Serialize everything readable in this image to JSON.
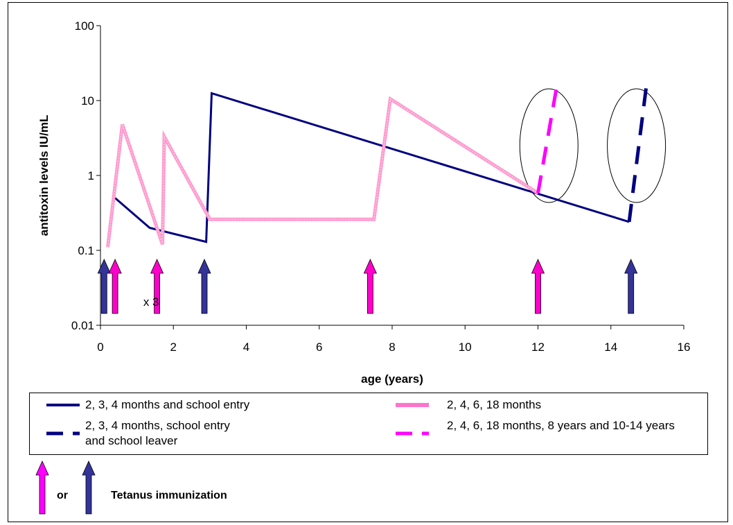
{
  "chart_data": {
    "type": "line",
    "title": "",
    "xlabel": "age (years)",
    "ylabel": "antitoxin levels IU/mL",
    "xlim": [
      0,
      16
    ],
    "ylim": [
      0.01,
      100
    ],
    "yscale": "log",
    "xticks": [
      0,
      2,
      4,
      6,
      8,
      10,
      12,
      14,
      16
    ],
    "yticks": [
      0.01,
      0.1,
      1,
      10,
      100
    ],
    "ytick_labels": [
      "0.01",
      "0.1",
      "1",
      "10",
      "100"
    ],
    "grid": false,
    "legend_position": "bottom",
    "series": [
      {
        "name": "2, 3, 4 months and school entry",
        "color": "#000080",
        "style": "solid",
        "points": [
          [
            0.4,
            0.5
          ],
          [
            1.35,
            0.2
          ],
          [
            2.9,
            0.13
          ],
          [
            3.05,
            12.5
          ],
          [
            14.5,
            0.24
          ]
        ]
      },
      {
        "name": "2, 4, 6, 18 months",
        "color": "#FF99CC",
        "style": "solid",
        "points": [
          [
            0.2,
            0.11
          ],
          [
            0.6,
            4.8
          ],
          [
            1.7,
            0.12
          ],
          [
            1.75,
            3.3
          ],
          [
            3.0,
            0.26
          ],
          [
            7.5,
            0.26
          ],
          [
            7.95,
            10.5
          ],
          [
            12.0,
            0.58
          ]
        ]
      },
      {
        "name": "2, 3, 4 months, school entry and school leaver",
        "color": "#000080",
        "style": "dashed",
        "points": [
          [
            14.5,
            0.24
          ],
          [
            15.0,
            20
          ]
        ]
      },
      {
        "name": "2, 4, 6, 18 months, 8 years and 10-14 years",
        "color": "#FF00FF",
        "style": "dashed",
        "points": [
          [
            12.0,
            0.58
          ],
          [
            12.5,
            14
          ]
        ]
      }
    ],
    "immunizations": [
      {
        "age": 0.1,
        "color": "#333399"
      },
      {
        "age": 0.4,
        "color": "#FF00CC"
      },
      {
        "age": 1.55,
        "color": "#FF00CC"
      },
      {
        "age": 2.85,
        "color": "#333399"
      },
      {
        "age": 7.4,
        "color": "#FF00CC"
      },
      {
        "age": 12.0,
        "color": "#FF00CC"
      },
      {
        "age": 14.55,
        "color": "#333399"
      }
    ],
    "annotations": [
      {
        "text": "x 3",
        "x": 0.7,
        "y": 0.025
      }
    ],
    "highlight_circles": [
      {
        "x": 12.3,
        "y": 2.5
      },
      {
        "x": 14.7,
        "y": 2.5
      }
    ]
  },
  "legend": {
    "item1": "2, 3, 4 months and school entry",
    "item2": "2, 4, 6, 18 months",
    "item3": "2, 3, 4 months, school entry and school leaver",
    "item4": "2, 4, 6, 18 months, 8 years and 10-14 years"
  },
  "footer": {
    "or_label": "or",
    "tetanus_label": "Tetanus immunization",
    "magenta": "#FF00FF",
    "navy": "#333399"
  }
}
